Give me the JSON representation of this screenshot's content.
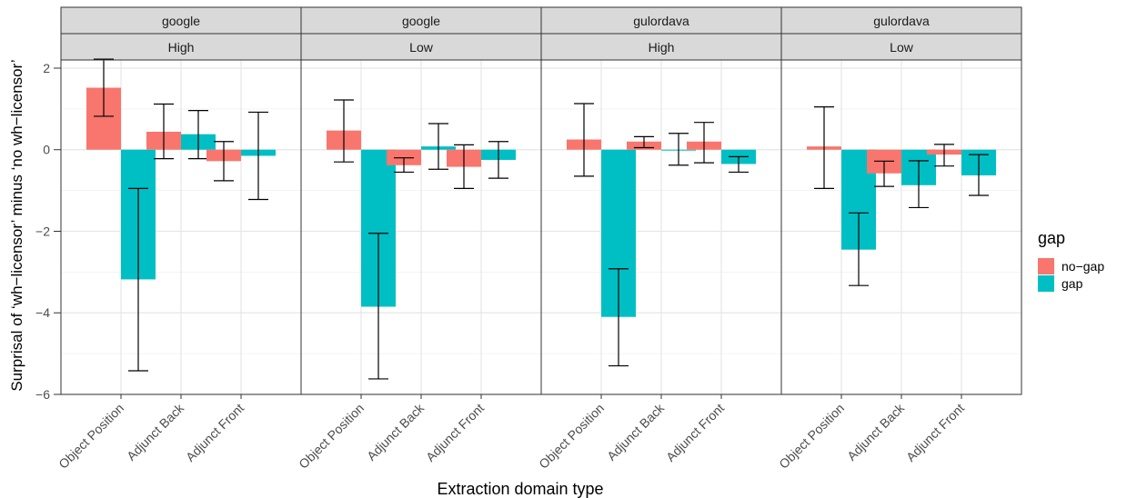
{
  "chart_data": {
    "type": "bar",
    "facet_row_1": [
      "google",
      "google",
      "gulordava",
      "gulordava"
    ],
    "facet_row_2": [
      "High",
      "Low",
      "High",
      "Low"
    ],
    "categories": [
      "Object Position",
      "Adjunct Back",
      "Adjunct Front"
    ],
    "xlabel": "Extraction domain type",
    "ylabel": "Surprisal of ‘wh−licensor’ minus ‘no wh−licensor’",
    "ylim": [
      -6,
      2.2
    ],
    "yticks": [
      2,
      0,
      -2,
      -4,
      -6
    ],
    "ytick_labels": [
      "2",
      "0",
      "−2",
      "−4",
      "−6"
    ],
    "grid": true,
    "legend": {
      "title": "gap",
      "position": "right",
      "entries": [
        "no−gap",
        "gap"
      ]
    },
    "series_colors": [
      "#F8766D",
      "#00BFC4"
    ],
    "panels": [
      {
        "no_gap": {
          "values": [
            1.52,
            0.44,
            -0.28
          ],
          "err_low": [
            0.82,
            -0.22,
            -0.76
          ],
          "err_high": [
            2.22,
            1.12,
            0.2
          ]
        },
        "gap": {
          "values": [
            -3.18,
            0.38,
            -0.15
          ],
          "err_low": [
            -5.42,
            -0.22,
            -1.22
          ],
          "err_high": [
            -0.95,
            0.96,
            0.92
          ]
        }
      },
      {
        "no_gap": {
          "values": [
            0.47,
            -0.38,
            -0.42
          ],
          "err_low": [
            -0.3,
            -0.55,
            -0.95
          ],
          "err_high": [
            1.22,
            -0.2,
            0.12
          ]
        },
        "gap": {
          "values": [
            -3.85,
            0.08,
            -0.25
          ],
          "err_low": [
            -5.62,
            -0.48,
            -0.7
          ],
          "err_high": [
            -2.05,
            0.64,
            0.2
          ]
        }
      },
      {
        "no_gap": {
          "values": [
            0.25,
            0.2,
            0.2
          ],
          "err_low": [
            -0.65,
            0.05,
            -0.32
          ],
          "err_high": [
            1.13,
            0.32,
            0.67
          ]
        },
        "gap": {
          "values": [
            -4.1,
            -0.02,
            -0.35
          ],
          "err_low": [
            -5.3,
            -0.38,
            -0.55
          ],
          "err_high": [
            -2.92,
            0.4,
            -0.17
          ]
        }
      },
      {
        "no_gap": {
          "values": [
            0.08,
            -0.58,
            -0.12
          ],
          "err_low": [
            -0.95,
            -0.9,
            -0.4
          ],
          "err_high": [
            1.05,
            -0.28,
            0.13
          ]
        },
        "gap": {
          "values": [
            -2.45,
            -0.87,
            -0.63
          ],
          "err_low": [
            -3.33,
            -1.42,
            -1.12
          ],
          "err_high": [
            -1.55,
            -0.27,
            -0.12
          ]
        }
      }
    ]
  }
}
